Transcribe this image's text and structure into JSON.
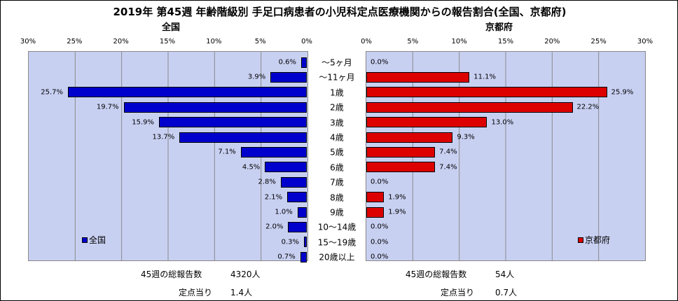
{
  "title": "2019年 第45週 年齢階級別 手足口病患者の小児科定点医療機関からの報告割合(全国、京都府)",
  "left_subtitle": "全国",
  "right_subtitle": "京都府",
  "left_ticks": [
    "30%",
    "25%",
    "20%",
    "15%",
    "10%",
    "5%",
    "0%"
  ],
  "right_ticks": [
    "0%",
    "5%",
    "10%",
    "15%",
    "20%",
    "25%",
    "30%"
  ],
  "chart_data": {
    "type": "bar",
    "categories": [
      "～5ヶ月",
      "～11ヶ月",
      "1歳",
      "2歳",
      "3歳",
      "4歳",
      "5歳",
      "6歳",
      "7歳",
      "8歳",
      "9歳",
      "10～14歳",
      "15～19歳",
      "20歳以上"
    ],
    "xlim": [
      0,
      30
    ],
    "series": [
      {
        "name": "全国",
        "color": "#0000cc",
        "values": [
          0.6,
          3.9,
          25.7,
          19.7,
          15.9,
          13.7,
          7.1,
          4.5,
          2.8,
          2.1,
          1.0,
          2.0,
          0.3,
          0.7
        ],
        "labels": [
          "0.6%",
          "3.9%",
          "25.7%",
          "19.7%",
          "15.9%",
          "13.7%",
          "7.1%",
          "4.5%",
          "2.8%",
          "2.1%",
          "1.0%",
          "2.0%",
          "0.3%",
          "0.7%"
        ]
      },
      {
        "name": "京都府",
        "color": "#dd0000",
        "values": [
          0.0,
          11.1,
          25.9,
          22.2,
          13.0,
          9.3,
          7.4,
          7.4,
          0.0,
          1.9,
          1.9,
          0.0,
          0.0,
          0.0
        ],
        "labels": [
          "0.0%",
          "11.1%",
          "25.9%",
          "22.2%",
          "13.0%",
          "9.3%",
          "7.4%",
          "7.4%",
          "0.0%",
          "1.9%",
          "1.9%",
          "0.0%",
          "0.0%",
          "0.0%"
        ]
      }
    ]
  },
  "footer": {
    "left_total_label": "45週の総報告数",
    "left_total_value": "4320人",
    "left_per_label": "定点当り",
    "left_per_value": "1.4人",
    "right_total_label": "45週の総報告数",
    "right_total_value": "54人",
    "right_per_label": "定点当り",
    "right_per_value": "0.7人"
  }
}
